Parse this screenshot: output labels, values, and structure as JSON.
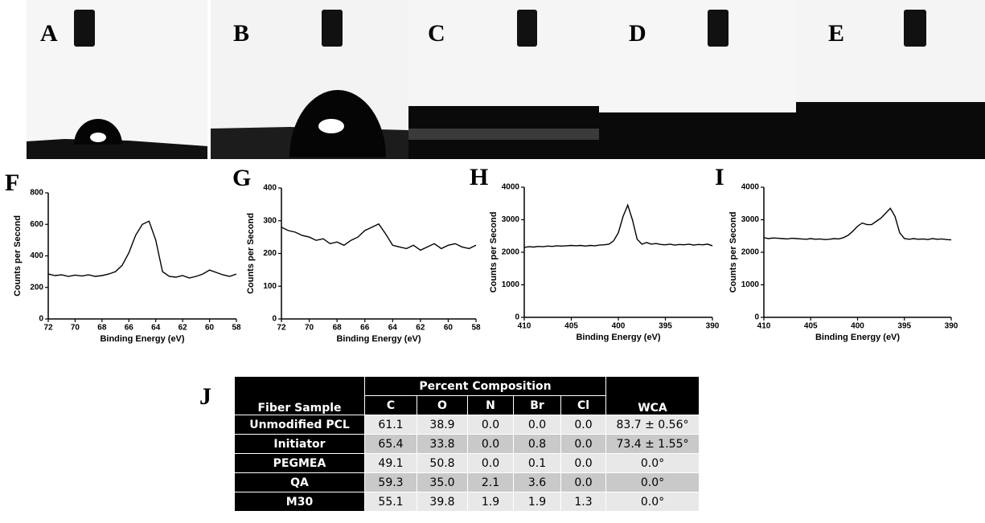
{
  "photo_labels": [
    "A",
    "B",
    "C",
    "D",
    "E"
  ],
  "chart_data": [
    {
      "type": "line",
      "panel": "F",
      "x_label": "Binding Energy  (eV)",
      "y_label": "Counts per Second",
      "color": "#000000",
      "x": [
        72,
        71.5,
        71,
        70.5,
        70,
        69.5,
        69,
        68.5,
        68,
        67.5,
        67,
        66.5,
        66,
        65.5,
        65,
        64.5,
        64,
        63.5,
        63,
        62.5,
        62,
        61.5,
        61,
        60.5,
        60,
        59.5,
        59,
        58.5,
        58
      ],
      "values": [
        285,
        275,
        280,
        270,
        278,
        272,
        280,
        270,
        275,
        285,
        300,
        340,
        420,
        530,
        600,
        620,
        500,
        300,
        270,
        265,
        275,
        260,
        270,
        285,
        310,
        295,
        280,
        270,
        285
      ],
      "xlim": [
        72,
        58
      ],
      "xticks": [
        72,
        70,
        68,
        66,
        64,
        62,
        60,
        58
      ],
      "ylim": [
        0,
        800
      ],
      "yticks": [
        0,
        200,
        400,
        600,
        800
      ]
    },
    {
      "type": "line",
      "panel": "G",
      "x_label": "Binding Energy  (eV)",
      "y_label": "Counts per Second",
      "color": "#000000",
      "x": [
        72,
        71.5,
        71,
        70.5,
        70,
        69.5,
        69,
        68.5,
        68,
        67.5,
        67,
        66.5,
        66,
        65.5,
        65,
        64.5,
        64,
        63.5,
        63,
        62.5,
        62,
        61.5,
        61,
        60.5,
        60,
        59.5,
        59,
        58.5,
        58
      ],
      "values": [
        280,
        270,
        265,
        255,
        250,
        240,
        245,
        230,
        235,
        225,
        240,
        250,
        270,
        280,
        290,
        260,
        225,
        220,
        215,
        225,
        210,
        220,
        230,
        215,
        225,
        230,
        220,
        215,
        225
      ],
      "xlim": [
        72,
        58
      ],
      "xticks": [
        72,
        70,
        68,
        66,
        64,
        62,
        60,
        58
      ],
      "ylim": [
        0,
        400
      ],
      "yticks": [
        0,
        100,
        200,
        300,
        400
      ]
    },
    {
      "type": "line",
      "panel": "H",
      "x_label": "Binding Energy  (eV)",
      "y_label": "Counts per Second",
      "color": "#000000",
      "x": [
        410,
        409.5,
        409,
        408.5,
        408,
        407.5,
        407,
        406.5,
        406,
        405.5,
        405,
        404.5,
        404,
        403.5,
        403,
        402.5,
        402,
        401.5,
        401,
        400.5,
        400,
        399.5,
        399,
        398.5,
        398,
        397.5,
        397,
        396.5,
        396,
        395.5,
        395,
        394.5,
        394,
        393.5,
        393,
        392.5,
        392,
        391.5,
        391,
        390.5,
        390
      ],
      "values": [
        2150,
        2170,
        2160,
        2180,
        2170,
        2190,
        2180,
        2200,
        2190,
        2200,
        2210,
        2200,
        2210,
        2190,
        2210,
        2200,
        2220,
        2230,
        2250,
        2350,
        2600,
        3100,
        3450,
        3000,
        2400,
        2250,
        2300,
        2250,
        2270,
        2240,
        2230,
        2250,
        2220,
        2240,
        2230,
        2250,
        2220,
        2240,
        2230,
        2250,
        2200
      ],
      "xlim": [
        410,
        390
      ],
      "xticks": [
        410,
        405,
        400,
        395,
        390
      ],
      "ylim": [
        0,
        4000
      ],
      "yticks": [
        0,
        1000,
        2000,
        3000,
        4000
      ]
    },
    {
      "type": "line",
      "panel": "I",
      "x_label": "Binding Energy  (eV)",
      "y_label": "Counts per Second",
      "color": "#000000",
      "x": [
        410,
        409.5,
        409,
        408.5,
        408,
        407.5,
        407,
        406.5,
        406,
        405.5,
        405,
        404.5,
        404,
        403.5,
        403,
        402.5,
        402,
        401.5,
        401,
        400.5,
        400,
        399.5,
        399,
        398.5,
        398,
        397.5,
        397,
        396.5,
        396,
        395.5,
        395,
        394.5,
        394,
        393.5,
        393,
        392.5,
        392,
        391.5,
        391,
        390.5,
        390
      ],
      "values": [
        2450,
        2420,
        2440,
        2430,
        2420,
        2410,
        2430,
        2420,
        2410,
        2400,
        2420,
        2400,
        2410,
        2390,
        2400,
        2420,
        2410,
        2450,
        2520,
        2650,
        2800,
        2900,
        2850,
        2850,
        2950,
        3050,
        3200,
        3350,
        3100,
        2600,
        2420,
        2400,
        2420,
        2400,
        2410,
        2390,
        2420,
        2400,
        2410,
        2390,
        2380
      ],
      "xlim": [
        410,
        390
      ],
      "xticks": [
        410,
        405,
        400,
        395,
        390
      ],
      "ylim": [
        0,
        4000
      ],
      "yticks": [
        0,
        1000,
        2000,
        3000,
        4000
      ]
    }
  ],
  "table": {
    "label": "J",
    "header": {
      "sample": "Fiber Sample",
      "group": "Percent Composition",
      "elements": [
        "C",
        "O",
        "N",
        "Br",
        "Cl"
      ],
      "wca": "WCA"
    },
    "rows": [
      [
        "Unmodified PCL",
        "61.1",
        "38.9",
        "0.0",
        "0.0",
        "0.0",
        "83.7 ± 0.56°"
      ],
      [
        "Initiator",
        "65.4",
        "33.8",
        "0.0",
        "0.8",
        "0.0",
        "73.4 ± 1.55°"
      ],
      [
        "PEGMEA",
        "49.1",
        "50.8",
        "0.0",
        "0.1",
        "0.0",
        "0.0°"
      ],
      [
        "QA",
        "59.3",
        "35.0",
        "2.1",
        "3.6",
        "0.0",
        "0.0°"
      ],
      [
        "M30",
        "55.1",
        "39.8",
        "1.9",
        "1.9",
        "1.3",
        "0.0°"
      ]
    ]
  }
}
